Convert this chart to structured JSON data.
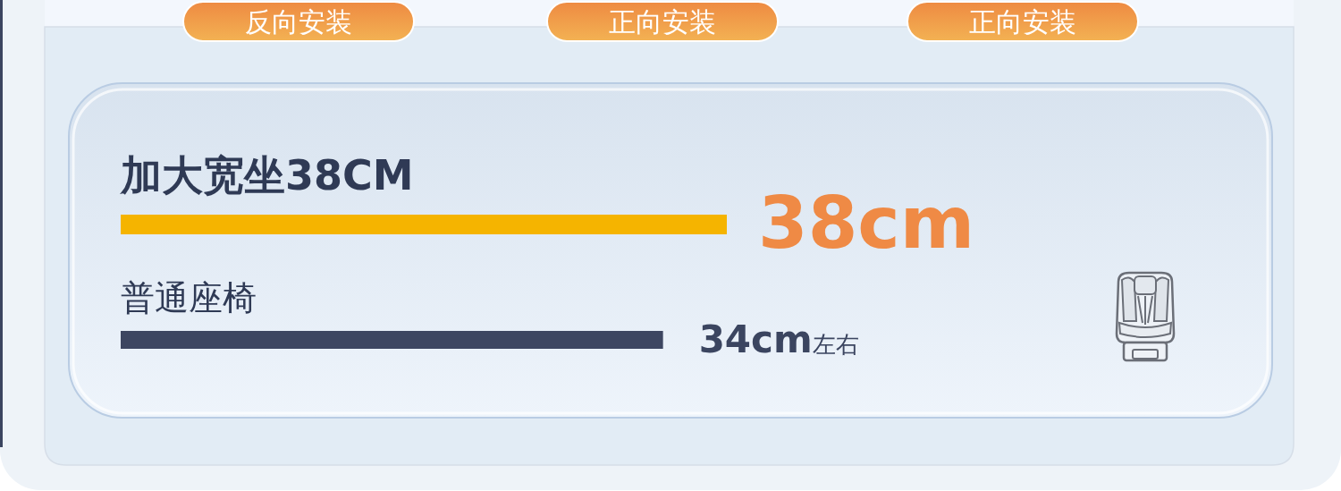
{
  "chart_data": {
    "type": "bar",
    "orientation": "horizontal",
    "categories": [
      "加大宽坐38CM",
      "普通座椅"
    ],
    "values": [
      38,
      34
    ],
    "colors": [
      "#f5b400",
      "#3d4661"
    ],
    "value_labels": [
      "38cm",
      "34cm左右"
    ],
    "annotations": [
      "反向安装",
      "正向安装",
      "正向安装"
    ]
  }
}
